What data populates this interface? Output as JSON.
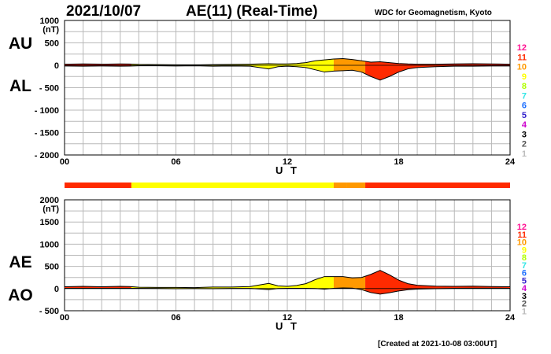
{
  "header": {
    "date": "2021/10/07",
    "title": "AE(11) (Real-Time)",
    "org": "WDC for Geomagnetism, Kyoto",
    "created": "[Created at 2021-10-08 03:00UT]"
  },
  "colors": {
    "band_12": "#ff1493",
    "band_11": "#ff2a00",
    "band_10": "#ff9900",
    "band_9": "#ffff00",
    "band_8": "#b0ff00",
    "band_7": "#33e6e6",
    "band_6": "#1e70ff",
    "band_5": "#3322cc",
    "band_4": "#cc00cc",
    "band_3": "#000000",
    "band_2": "#555555",
    "band_1": "#bbbbbb"
  },
  "scale_legend": [
    "12",
    "11",
    "10",
    "9",
    "8",
    "7",
    "6",
    "5",
    "4",
    "3",
    "2",
    "1"
  ],
  "chart_data": [
    {
      "type": "area",
      "series": [
        {
          "name": "AU",
          "x": [
            0,
            1,
            2,
            3,
            3.5,
            4,
            5,
            6,
            7,
            8,
            9,
            10,
            10.5,
            11,
            11.5,
            12,
            12.5,
            13,
            13.5,
            14,
            14.5,
            15,
            15.5,
            16,
            16.5,
            17,
            17.5,
            18,
            18.5,
            19,
            20,
            21,
            22,
            23,
            24
          ],
          "values": [
            25,
            30,
            25,
            30,
            28,
            20,
            15,
            10,
            10,
            15,
            20,
            25,
            30,
            35,
            30,
            30,
            40,
            60,
            100,
            120,
            140,
            150,
            130,
            100,
            70,
            80,
            60,
            40,
            30,
            25,
            25,
            30,
            35,
            30,
            25
          ]
        },
        {
          "name": "AL",
          "x": [
            0,
            1,
            2,
            3,
            3.5,
            4,
            5,
            6,
            7,
            8,
            9,
            10,
            10.5,
            11,
            11.5,
            12,
            12.5,
            13,
            13.5,
            14,
            14.5,
            15,
            15.5,
            16,
            16.5,
            17,
            17.5,
            18,
            18.5,
            19,
            20,
            21,
            22,
            23,
            24
          ],
          "values": [
            -15,
            -20,
            -15,
            -20,
            -18,
            -10,
            -10,
            -15,
            -10,
            -20,
            -15,
            -20,
            -50,
            -80,
            -30,
            -20,
            -30,
            -50,
            -100,
            -150,
            -130,
            -120,
            -110,
            -150,
            -250,
            -330,
            -250,
            -150,
            -80,
            -50,
            -30,
            -20,
            -20,
            -15,
            -15
          ]
        }
      ],
      "ylabel": "(nT)",
      "ylim": [
        -2000,
        1000
      ],
      "yticks": [
        "1000",
        "500",
        "0",
        "- 500",
        "- 1000",
        "- 1500",
        "- 2000"
      ],
      "xlim": [
        0,
        24
      ],
      "xticks": [
        "00",
        "06",
        "12",
        "18",
        "24"
      ],
      "xlabel": "U T",
      "left_labels": [
        "AU",
        "AL"
      ],
      "grid": true
    },
    {
      "type": "area",
      "series": [
        {
          "name": "AE",
          "x": [
            0,
            1,
            2,
            3,
            3.5,
            4,
            5,
            6,
            7,
            8,
            9,
            10,
            10.5,
            11,
            11.5,
            12,
            12.5,
            13,
            13.5,
            14,
            14.5,
            15,
            15.5,
            16,
            16.5,
            17,
            17.5,
            18,
            18.5,
            19,
            20,
            21,
            22,
            23,
            24
          ],
          "values": [
            40,
            50,
            40,
            50,
            46,
            30,
            25,
            25,
            20,
            35,
            35,
            45,
            80,
            115,
            60,
            50,
            70,
            110,
            200,
            270,
            270,
            270,
            240,
            250,
            320,
            410,
            310,
            190,
            110,
            75,
            55,
            50,
            55,
            45,
            40
          ]
        },
        {
          "name": "AO",
          "x": [
            0,
            1,
            2,
            3,
            3.5,
            4,
            5,
            6,
            7,
            8,
            9,
            10,
            10.5,
            11,
            11.5,
            12,
            12.5,
            13,
            13.5,
            14,
            14.5,
            15,
            15.5,
            16,
            16.5,
            17,
            17.5,
            18,
            18.5,
            19,
            20,
            21,
            22,
            23,
            24
          ],
          "values": [
            5,
            5,
            5,
            5,
            5,
            5,
            3,
            -3,
            0,
            -3,
            3,
            3,
            -10,
            -23,
            0,
            5,
            5,
            5,
            0,
            -15,
            5,
            15,
            10,
            -25,
            -90,
            -125,
            -95,
            -55,
            -25,
            -13,
            -3,
            5,
            8,
            8,
            5
          ]
        }
      ],
      "ylabel": "(nT)",
      "ylim": [
        -500,
        2000
      ],
      "yticks": [
        "2000",
        "1500",
        "1000",
        "500",
        "0",
        "- 500"
      ],
      "xlim": [
        0,
        24
      ],
      "xticks": [
        "00",
        "06",
        "12",
        "18",
        "24"
      ],
      "xlabel": "U T",
      "left_labels": [
        "AE",
        "AO"
      ],
      "grid": true
    }
  ],
  "coverage_bar": [
    {
      "start": 0,
      "end": 3.6,
      "color": "#ff2a00"
    },
    {
      "start": 3.6,
      "end": 14.5,
      "color": "#ffff00"
    },
    {
      "start": 14.5,
      "end": 15.2,
      "color": "#ff9900"
    },
    {
      "start": 15.2,
      "end": 16.2,
      "color": "#ff9900"
    },
    {
      "start": 16.2,
      "end": 24,
      "color": "#ff2a00"
    }
  ],
  "color_segments": [
    {
      "start": 0,
      "end": 3.6,
      "color": "#ff2a00"
    },
    {
      "start": 3.6,
      "end": 14.5,
      "color": "#ffff00"
    },
    {
      "start": 14.5,
      "end": 16.2,
      "color": "#ff9900"
    },
    {
      "start": 16.2,
      "end": 24,
      "color": "#ff2a00"
    }
  ]
}
